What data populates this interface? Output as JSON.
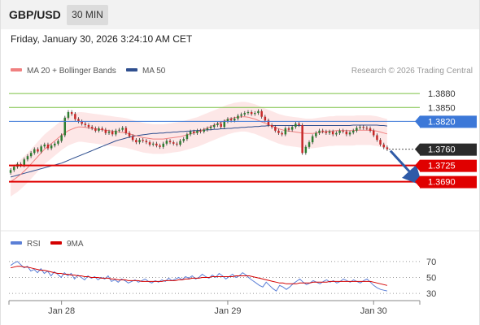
{
  "header": {
    "pair": "GBP/USD",
    "timeframe": "30 MIN",
    "datetime": "Friday, January 30, 2026 3:24:10 AM CET"
  },
  "legend": {
    "ma20_label": "MA 20 + Bollinger Bands",
    "ma50_label": "MA 50",
    "credit": "Research © 2026 Trading Central",
    "ma20_color": "#f08080",
    "ma50_color": "#2f4f8f"
  },
  "rsi_legend": {
    "rsi_label": "RSI",
    "ma_label": "9MA",
    "rsi_color": "#5b7fd6",
    "ma_color": "#d40000"
  },
  "chart_data": [
    {
      "type": "candlestick",
      "title": "GBP/USD 30 MIN",
      "ylim": [
        1.36,
        1.391
      ],
      "x_ticks": [
        "Jan 28",
        "Jan 29",
        "Jan 30"
      ],
      "current_price": 1.376,
      "levels": [
        {
          "value": 1.388,
          "label": "1.3880",
          "kind": "resistance",
          "color": "#7ac143"
        },
        {
          "value": 1.385,
          "label": "1.3850",
          "kind": "resistance",
          "color": "#7ac143"
        },
        {
          "value": 1.382,
          "label": "1.3820",
          "kind": "pivot",
          "color": "#3c78d8"
        },
        {
          "value": 1.376,
          "label": "1.3760",
          "kind": "last",
          "color": "#333333"
        },
        {
          "value": 1.3725,
          "label": "1.3725",
          "kind": "support",
          "color": "#e00000"
        },
        {
          "value": 1.369,
          "label": "1.3690",
          "kind": "support",
          "color": "#e00000"
        }
      ],
      "close": [
        1.3715,
        1.3722,
        1.3728,
        1.3725,
        1.3738,
        1.3745,
        1.3752,
        1.376,
        1.3755,
        1.3766,
        1.377,
        1.3762,
        1.3768,
        1.3772,
        1.3778,
        1.379,
        1.3828,
        1.384,
        1.3836,
        1.3825,
        1.382,
        1.3815,
        1.3812,
        1.3808,
        1.3805,
        1.38,
        1.3805,
        1.3802,
        1.3795,
        1.3798,
        1.3792,
        1.38,
        1.3802,
        1.3806,
        1.3795,
        1.3788,
        1.378,
        1.3775,
        1.378,
        1.3778,
        1.3775,
        1.377,
        1.3772,
        1.3768,
        1.3765,
        1.3772,
        1.3778,
        1.3775,
        1.3772,
        1.377,
        1.3778,
        1.3782,
        1.3792,
        1.3798,
        1.3795,
        1.38,
        1.3798,
        1.3802,
        1.3805,
        1.3808,
        1.3812,
        1.3815,
        1.3808,
        1.382,
        1.3825,
        1.3822,
        1.3826,
        1.3832,
        1.3835,
        1.3838,
        1.384,
        1.3836,
        1.3838,
        1.3842,
        1.383,
        1.3822,
        1.3812,
        1.3808,
        1.38,
        1.3795,
        1.3792,
        1.3805,
        1.3802,
        1.3808,
        1.3815,
        1.3812,
        1.3752,
        1.3765,
        1.3775,
        1.3788,
        1.3795,
        1.38,
        1.3798,
        1.3795,
        1.3798,
        1.3792,
        1.3795,
        1.38,
        1.3798,
        1.3792,
        1.3796,
        1.38,
        1.3806,
        1.3808,
        1.3806,
        1.3805,
        1.38,
        1.379,
        1.378,
        1.377,
        1.3764,
        1.376
      ],
      "ma20": [
        1.369,
        1.3695,
        1.37,
        1.3706,
        1.3713,
        1.372,
        1.3728,
        1.3736,
        1.3744,
        1.3752,
        1.376,
        1.3766,
        1.3772,
        1.3778,
        1.3784,
        1.379,
        1.3795,
        1.38,
        1.3803,
        1.3806,
        1.3808,
        1.3808,
        1.3807,
        1.3806,
        1.3805,
        1.3804,
        1.3803,
        1.3802,
        1.3801,
        1.38,
        1.3799,
        1.3798,
        1.3797,
        1.3796,
        1.3795,
        1.3793,
        1.3791,
        1.3789,
        1.3787,
        1.3785,
        1.3784,
        1.3783,
        1.3782,
        1.3782,
        1.3782,
        1.3782,
        1.3783,
        1.3784,
        1.3785,
        1.3786,
        1.3787,
        1.3789,
        1.3791,
        1.3793,
        1.3795,
        1.3797,
        1.38,
        1.3803,
        1.3806,
        1.3809,
        1.3812,
        1.3815,
        1.3818,
        1.3821,
        1.3824,
        1.3826,
        1.3828,
        1.3829,
        1.383,
        1.383,
        1.3829,
        1.3827,
        1.3825,
        1.3822,
        1.3819,
        1.3816,
        1.3813,
        1.381,
        1.3807,
        1.3804,
        1.3802,
        1.38,
        1.3799,
        1.3798,
        1.3797,
        1.3796,
        1.3795,
        1.3794,
        1.3794,
        1.3794,
        1.3795,
        1.3796,
        1.3797,
        1.3798,
        1.3799,
        1.3799,
        1.38,
        1.38,
        1.38,
        1.38,
        1.38,
        1.38,
        1.3801,
        1.3801,
        1.3801,
        1.3801,
        1.3801,
        1.38,
        1.3799,
        1.3797,
        1.3795,
        1.3793
      ],
      "ma50": [
        1.37,
        1.3702,
        1.3704,
        1.3706,
        1.3708,
        1.371,
        1.3712,
        1.3714,
        1.3716,
        1.3718,
        1.372,
        1.3722,
        1.3724,
        1.3726,
        1.3728,
        1.373,
        1.3733,
        1.3736,
        1.3739,
        1.3742,
        1.3745,
        1.3748,
        1.3751,
        1.3754,
        1.3757,
        1.376,
        1.3763,
        1.3766,
        1.3769,
        1.3772,
        1.3775,
        1.3778,
        1.378,
        1.3782,
        1.3784,
        1.3786,
        1.3788,
        1.3789,
        1.379,
        1.3791,
        1.3792,
        1.3793,
        1.3794,
        1.3794,
        1.3795,
        1.3795,
        1.3796,
        1.3796,
        1.3797,
        1.3797,
        1.3798,
        1.3798,
        1.3799,
        1.3799,
        1.38,
        1.38,
        1.3801,
        1.3801,
        1.3802,
        1.3802,
        1.3803,
        1.3803,
        1.3804,
        1.3804,
        1.3805,
        1.3805,
        1.3806,
        1.3806,
        1.3807,
        1.3807,
        1.3808,
        1.3808,
        1.3809,
        1.3809,
        1.381,
        1.381,
        1.3811,
        1.3811,
        1.3811,
        1.3811,
        1.3811,
        1.3811,
        1.3811,
        1.3811,
        1.3811,
        1.3811,
        1.3811,
        1.3811,
        1.3811,
        1.3811,
        1.3811,
        1.3811,
        1.3811,
        1.3811,
        1.3811,
        1.3811,
        1.3811,
        1.3811,
        1.3811,
        1.3811,
        1.3811,
        1.3812,
        1.3812,
        1.3812,
        1.3812,
        1.3812,
        1.3812,
        1.3812,
        1.3812,
        1.3811,
        1.3811,
        1.381
      ],
      "band_width": 0.0032
    },
    {
      "type": "line",
      "title": "RSI",
      "ylim": [
        25,
        80
      ],
      "y_ticks": [
        70,
        50,
        30
      ],
      "series": [
        {
          "name": "RSI",
          "color": "#5b7fd6",
          "values": [
            65,
            68,
            70,
            66,
            62,
            64,
            58,
            60,
            56,
            61,
            55,
            58,
            52,
            57,
            54,
            50,
            56,
            52,
            55,
            48,
            53,
            50,
            47,
            52,
            49,
            51,
            47,
            50,
            48,
            52,
            45,
            47,
            44,
            48,
            46,
            43,
            45,
            47,
            44,
            46,
            48,
            45,
            43,
            46,
            44,
            47,
            45,
            49,
            46,
            48,
            50,
            47,
            51,
            49,
            52,
            48,
            50,
            54,
            51,
            49,
            53,
            50,
            55,
            52,
            48,
            51,
            54,
            50,
            52,
            56,
            53,
            49,
            46,
            43,
            40,
            38,
            44,
            40,
            36,
            33,
            40,
            38,
            35,
            38,
            42,
            45,
            48,
            44,
            41,
            43,
            46,
            44,
            42,
            45,
            47,
            44,
            46,
            43,
            45,
            48,
            46,
            44,
            47,
            45,
            43,
            46,
            48,
            44,
            40,
            37,
            35,
            34,
            33
          ]
        },
        {
          "name": "9MA",
          "color": "#d40000",
          "values": [
            62,
            63,
            64,
            64,
            63,
            63,
            62,
            61,
            60,
            59,
            59,
            58,
            57,
            56,
            55,
            55,
            54,
            54,
            53,
            53,
            52,
            52,
            51,
            51,
            50,
            50,
            50,
            49,
            49,
            49,
            48,
            48,
            47,
            47,
            47,
            46,
            46,
            46,
            46,
            45,
            45,
            45,
            45,
            45,
            45,
            45,
            46,
            46,
            46,
            46,
            47,
            47,
            48,
            48,
            49,
            49,
            49,
            50,
            50,
            50,
            51,
            51,
            51,
            51,
            51,
            51,
            51,
            52,
            52,
            52,
            52,
            52,
            51,
            50,
            49,
            48,
            47,
            46,
            45,
            44,
            43,
            43,
            42,
            42,
            42,
            42,
            43,
            43,
            43,
            43,
            44,
            44,
            44,
            44,
            44,
            45,
            45,
            45,
            45,
            45,
            45,
            45,
            45,
            45,
            45,
            45,
            45,
            45,
            44,
            43,
            42,
            41,
            40
          ]
        }
      ]
    }
  ]
}
